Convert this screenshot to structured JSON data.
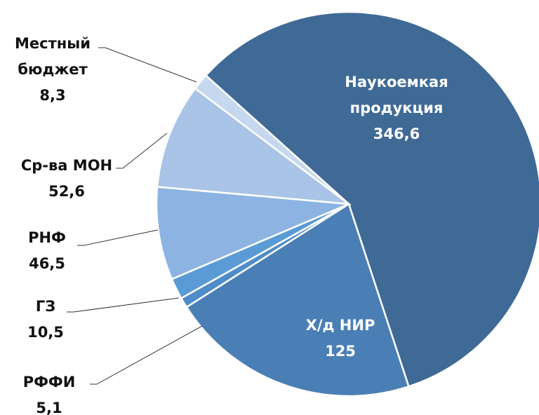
{
  "chart_data": {
    "type": "pie",
    "categories": [
      "Наукоемкая продукция",
      "Х/д НИР",
      "РФФИ",
      "ГЗ",
      "РНФ",
      "Ср-ва МОН",
      "Местный бюджет"
    ],
    "values": [
      346.6,
      125,
      5.1,
      10.5,
      46.5,
      52.6,
      8.3
    ],
    "value_labels": [
      "346,6",
      "125",
      "5,1",
      "10,5",
      "46,5",
      "52,6",
      "8,3"
    ],
    "colors": [
      "#3f6a96",
      "#4a7fb5",
      "#4f8cc9",
      "#5b9bd5",
      "#8db3e2",
      "#a9c4e6",
      "#c6d8ef"
    ]
  }
}
